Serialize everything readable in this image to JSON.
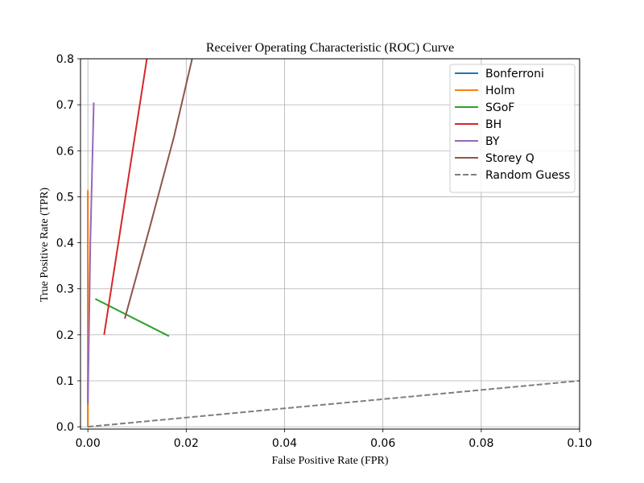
{
  "chart_data": {
    "type": "line",
    "title": "Receiver Operating Characteristic (ROC) Curve",
    "xlabel": "False Positive Rate (FPR)",
    "ylabel": "True Positive Rate (TPR)",
    "xlim": [
      -0.0015,
      0.1
    ],
    "ylim": [
      -0.005,
      0.8
    ],
    "x_ticks": [
      0.0,
      0.02,
      0.04,
      0.06,
      0.08,
      0.1
    ],
    "x_tick_labels": [
      "0.00",
      "0.02",
      "0.04",
      "0.06",
      "0.08",
      "0.10"
    ],
    "y_ticks": [
      0.0,
      0.1,
      0.2,
      0.3,
      0.4,
      0.5,
      0.6,
      0.7,
      0.8
    ],
    "y_tick_labels": [
      "0.0",
      "0.1",
      "0.2",
      "0.3",
      "0.4",
      "0.5",
      "0.6",
      "0.7",
      "0.8"
    ],
    "grid": true,
    "legend_position": "top-right",
    "series": [
      {
        "name": "Bonferroni",
        "color": "#1f77b4",
        "dash": "solid",
        "x": [
          0.0,
          0.0,
          0.0
        ],
        "y": [
          0.0,
          0.25,
          0.51
        ]
      },
      {
        "name": "Holm",
        "color": "#ff7f0e",
        "dash": "solid",
        "x": [
          0.0,
          0.0,
          0.0
        ],
        "y": [
          0.0,
          0.26,
          0.515
        ]
      },
      {
        "name": "SGoF",
        "color": "#2ca02c",
        "dash": "solid",
        "x": [
          0.0015,
          0.0165
        ],
        "y": [
          0.278,
          0.197
        ]
      },
      {
        "name": "BH",
        "color": "#d62728",
        "dash": "solid",
        "x": [
          0.0033,
          0.012
        ],
        "y": [
          0.2,
          0.8
        ]
      },
      {
        "name": "BY",
        "color": "#9467bd",
        "dash": "solid",
        "x": [
          0.0,
          0.0005,
          0.0012
        ],
        "y": [
          0.05,
          0.4,
          0.705
        ]
      },
      {
        "name": "Storey Q",
        "color": "#8c564b",
        "dash": "solid",
        "x": [
          0.0075,
          0.0125,
          0.0175,
          0.0212
        ],
        "y": [
          0.235,
          0.43,
          0.63,
          0.8
        ]
      },
      {
        "name": "Random Guess",
        "color": "#7f7f7f",
        "dash": "dashed",
        "x": [
          0.0,
          0.1
        ],
        "y": [
          0.0,
          0.1
        ]
      }
    ]
  }
}
